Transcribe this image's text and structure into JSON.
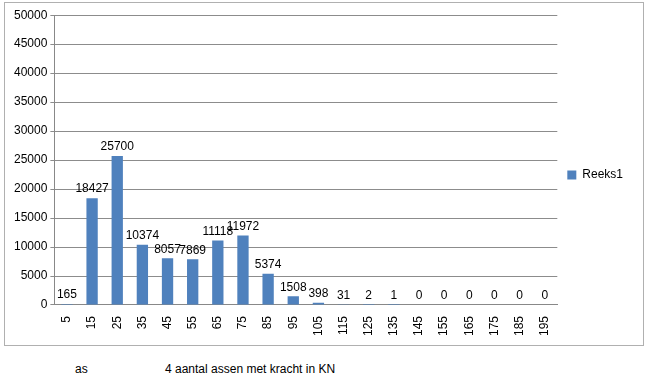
{
  "chart_data": {
    "type": "bar",
    "categories": [
      "5",
      "15",
      "25",
      "35",
      "45",
      "55",
      "65",
      "75",
      "85",
      "95",
      "105",
      "115",
      "125",
      "135",
      "145",
      "155",
      "165",
      "175",
      "185",
      "195"
    ],
    "series": [
      {
        "name": "Reeks1",
        "color": "#4f81bd",
        "values": [
          165,
          18427,
          25700,
          10374,
          8057,
          7869,
          11118,
          11972,
          5374,
          1508,
          398,
          31,
          2,
          1,
          0,
          0,
          0,
          0,
          0,
          0
        ]
      }
    ],
    "ylim": [
      0,
      50000
    ],
    "yticks": [
      0,
      5000,
      10000,
      15000,
      20000,
      25000,
      30000,
      35000,
      40000,
      45000,
      50000
    ],
    "grid": true,
    "legend": "right",
    "data_labels": true,
    "annotations": [
      "as",
      "4 aantal assen met kracht in KN"
    ]
  }
}
